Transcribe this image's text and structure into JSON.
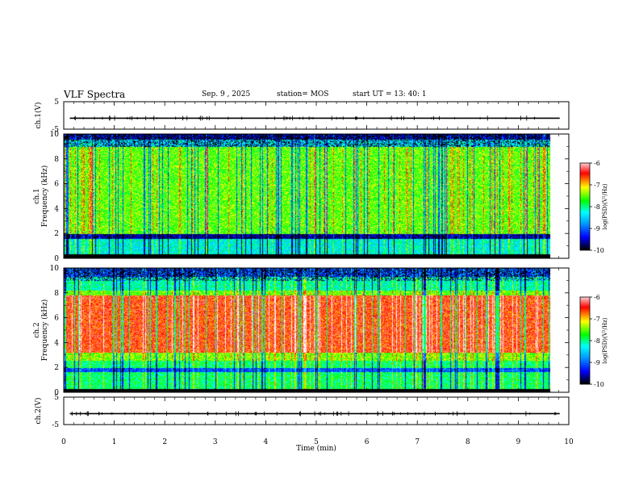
{
  "header": {
    "title": "VLF Spectra",
    "date": "Sep. 9 , 2025",
    "station": "station= MOS",
    "start_time": "start  UT =   13: 40: 1"
  },
  "chart_data": [
    {
      "type": "line",
      "id": "ch1-waveform",
      "ylabel": "ch.1(V)",
      "ylim": [
        -5,
        5
      ],
      "yticks": [
        "5",
        "-5"
      ],
      "baseline": -1,
      "xlim": [
        0,
        10
      ]
    },
    {
      "type": "heatmap",
      "id": "ch1-spectrogram",
      "ylabel": "ch.1\nFrequency (kHz)",
      "ylim": [
        0,
        10
      ],
      "yticks": [
        "10",
        "8",
        "6",
        "4",
        "2",
        "0"
      ],
      "xlim": [
        0,
        10
      ],
      "data_end_min": 9.82,
      "colorbar": {
        "label": "log(PSD)(V²/Hz)",
        "range": [
          -10,
          -6
        ],
        "ticks": [
          "-6",
          "-7",
          "-8",
          "-9",
          "-10"
        ]
      }
    },
    {
      "type": "heatmap",
      "id": "ch2-spectrogram",
      "ylabel": "ch.2\nFrequency (kHz)",
      "ylim": [
        0,
        10
      ],
      "yticks": [
        "10",
        "8",
        "6",
        "4",
        "2",
        "0"
      ],
      "xlim": [
        0,
        10
      ],
      "data_end_min": 9.82,
      "colorbar": {
        "label": "log(PSD)(V²/Hz)",
        "range": [
          -10,
          -6
        ],
        "ticks": [
          "-6",
          "-7",
          "-8",
          "-9",
          "-10"
        ]
      }
    },
    {
      "type": "line",
      "id": "ch2-waveform",
      "ylabel": "ch.2(V)",
      "ylim": [
        -5,
        5
      ],
      "yticks": [
        "5",
        "-5"
      ],
      "baseline": -1,
      "xlim": [
        0,
        10
      ]
    }
  ],
  "xaxis": {
    "label": "Time  (min)",
    "ticks": [
      "0",
      "1",
      "2",
      "3",
      "4",
      "5",
      "6",
      "7",
      "8",
      "9",
      "10"
    ]
  },
  "colors": {
    "colormap": [
      "#000000",
      "#0000ff",
      "#00a0ff",
      "#00ffff",
      "#00ff00",
      "#ffff00",
      "#ff0000",
      "#ffffff"
    ]
  }
}
